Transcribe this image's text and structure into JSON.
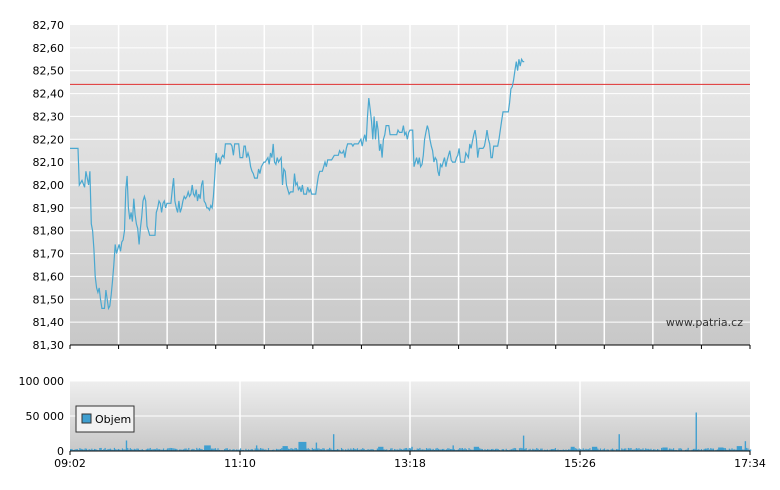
{
  "watermark": "www.patria.cz",
  "legend": {
    "label": "Objem"
  },
  "colors": {
    "price_line": "#4aa8d0",
    "reference_line": "#e03030",
    "volume_bars": "#3f9fd0",
    "plot_bg_top": "#eeeeee",
    "plot_bg_bottom": "#c8c8c8",
    "grid": "#ffffff"
  },
  "chart_data": [
    {
      "type": "line",
      "name": "price",
      "ylim": [
        81.3,
        82.7
      ],
      "y_ticks": [
        "81,30",
        "81,40",
        "81,50",
        "81,60",
        "81,70",
        "81,80",
        "81,90",
        "82,00",
        "82,10",
        "82,20",
        "82,30",
        "82,40",
        "82,50",
        "82,60",
        "82,70"
      ],
      "x_range_minutes": [
        542,
        1054
      ],
      "reference_value": 82.44,
      "points": [
        [
          542,
          82.16
        ],
        [
          548,
          82.16
        ],
        [
          549,
          82.0
        ],
        [
          551,
          82.02
        ],
        [
          553,
          81.99
        ],
        [
          554,
          82.06
        ],
        [
          556,
          82.0
        ],
        [
          557,
          82.06
        ],
        [
          558,
          81.83
        ],
        [
          559,
          81.8
        ],
        [
          560,
          81.72
        ],
        [
          561,
          81.6
        ],
        [
          562,
          81.55
        ],
        [
          563,
          81.53
        ],
        [
          564,
          81.55
        ],
        [
          565,
          81.5
        ],
        [
          566,
          81.46
        ],
        [
          568,
          81.46
        ],
        [
          569,
          81.54
        ],
        [
          570,
          81.5
        ],
        [
          571,
          81.46
        ],
        [
          572,
          81.47
        ],
        [
          573,
          81.52
        ],
        [
          574,
          81.58
        ],
        [
          575,
          81.65
        ],
        [
          576,
          81.74
        ],
        [
          577,
          81.7
        ],
        [
          578,
          81.72
        ],
        [
          579,
          81.74
        ],
        [
          580,
          81.71
        ],
        [
          581,
          81.75
        ],
        [
          582,
          81.76
        ],
        [
          583,
          81.8
        ],
        [
          584,
          81.98
        ],
        [
          585,
          82.04
        ],
        [
          586,
          81.9
        ],
        [
          587,
          81.85
        ],
        [
          588,
          81.88
        ],
        [
          589,
          81.84
        ],
        [
          590,
          81.94
        ],
        [
          591,
          81.87
        ],
        [
          592,
          81.83
        ],
        [
          593,
          81.81
        ],
        [
          594,
          81.74
        ],
        [
          595,
          81.81
        ],
        [
          596,
          81.86
        ],
        [
          597,
          81.93
        ],
        [
          598,
          81.95
        ],
        [
          599,
          81.93
        ],
        [
          600,
          81.82
        ],
        [
          601,
          81.8
        ],
        [
          602,
          81.78
        ],
        [
          604,
          81.78
        ],
        [
          606,
          81.78
        ],
        [
          607,
          81.88
        ],
        [
          608,
          81.9
        ],
        [
          609,
          81.93
        ],
        [
          610,
          81.92
        ],
        [
          611,
          81.88
        ],
        [
          612,
          81.92
        ],
        [
          613,
          81.93
        ],
        [
          614,
          81.9
        ],
        [
          615,
          81.92
        ],
        [
          616,
          81.92
        ],
        [
          618,
          81.92
        ],
        [
          619,
          81.98
        ],
        [
          620,
          82.03
        ],
        [
          621,
          81.93
        ],
        [
          622,
          81.9
        ],
        [
          623,
          81.88
        ],
        [
          624,
          81.93
        ],
        [
          625,
          81.88
        ],
        [
          626,
          81.9
        ],
        [
          627,
          81.93
        ],
        [
          628,
          81.95
        ],
        [
          629,
          81.94
        ],
        [
          630,
          81.95
        ],
        [
          631,
          81.97
        ],
        [
          632,
          81.95
        ],
        [
          633,
          81.96
        ],
        [
          634,
          82.0
        ],
        [
          635,
          81.96
        ],
        [
          636,
          81.95
        ],
        [
          637,
          81.98
        ],
        [
          638,
          81.93
        ],
        [
          639,
          81.96
        ],
        [
          640,
          81.94
        ],
        [
          641,
          82.0
        ],
        [
          642,
          82.02
        ],
        [
          643,
          81.93
        ],
        [
          644,
          81.92
        ],
        [
          645,
          81.9
        ],
        [
          646,
          81.9
        ],
        [
          647,
          81.89
        ],
        [
          648,
          81.91
        ],
        [
          649,
          81.9
        ],
        [
          650,
          81.95
        ],
        [
          651,
          82.04
        ],
        [
          652,
          82.14
        ],
        [
          653,
          82.1
        ],
        [
          654,
          82.12
        ],
        [
          655,
          82.09
        ],
        [
          656,
          82.12
        ],
        [
          657,
          82.13
        ],
        [
          658,
          82.12
        ],
        [
          659,
          82.18
        ],
        [
          660,
          82.18
        ],
        [
          663,
          82.18
        ],
        [
          664,
          82.17
        ],
        [
          665,
          82.13
        ],
        [
          666,
          82.18
        ],
        [
          667,
          82.18
        ],
        [
          669,
          82.18
        ],
        [
          670,
          82.12
        ],
        [
          672,
          82.12
        ],
        [
          673,
          82.17
        ],
        [
          674,
          82.17
        ],
        [
          675,
          82.12
        ],
        [
          676,
          82.14
        ],
        [
          677,
          82.12
        ],
        [
          678,
          82.08
        ],
        [
          679,
          82.06
        ],
        [
          680,
          82.05
        ],
        [
          681,
          82.03
        ],
        [
          683,
          82.03
        ],
        [
          684,
          82.07
        ],
        [
          685,
          82.05
        ],
        [
          686,
          82.08
        ],
        [
          687,
          82.09
        ],
        [
          688,
          82.1
        ],
        [
          689,
          82.1
        ],
        [
          691,
          82.12
        ],
        [
          692,
          82.09
        ],
        [
          693,
          82.14
        ],
        [
          694,
          82.12
        ],
        [
          695,
          82.18
        ],
        [
          696,
          82.1
        ],
        [
          697,
          82.09
        ],
        [
          698,
          82.12
        ],
        [
          699,
          82.1
        ],
        [
          700,
          82.11
        ],
        [
          701,
          82.12
        ],
        [
          702,
          82.0
        ],
        [
          703,
          82.07
        ],
        [
          704,
          82.06
        ],
        [
          705,
          82.0
        ],
        [
          706,
          81.98
        ],
        [
          707,
          81.96
        ],
        [
          708,
          81.97
        ],
        [
          710,
          81.97
        ],
        [
          711,
          82.05
        ],
        [
          712,
          82.0
        ],
        [
          713,
          82.01
        ],
        [
          714,
          81.98
        ],
        [
          715,
          81.99
        ],
        [
          716,
          81.97
        ],
        [
          717,
          82.0
        ],
        [
          718,
          81.96
        ],
        [
          720,
          81.96
        ],
        [
          721,
          81.99
        ],
        [
          722,
          81.97
        ],
        [
          723,
          81.98
        ],
        [
          724,
          81.96
        ],
        [
          727,
          81.96
        ],
        [
          728,
          82.0
        ],
        [
          729,
          82.04
        ],
        [
          730,
          82.06
        ],
        [
          731,
          82.06
        ],
        [
          732,
          82.06
        ],
        [
          733,
          82.08
        ],
        [
          734,
          82.1
        ],
        [
          735,
          82.08
        ],
        [
          736,
          82.11
        ],
        [
          739,
          82.11
        ],
        [
          740,
          82.12
        ],
        [
          741,
          82.13
        ],
        [
          742,
          82.13
        ],
        [
          744,
          82.13
        ],
        [
          745,
          82.15
        ],
        [
          746,
          82.14
        ],
        [
          747,
          82.14
        ],
        [
          748,
          82.15
        ],
        [
          749,
          82.12
        ],
        [
          750,
          82.16
        ],
        [
          751,
          82.18
        ],
        [
          752,
          82.18
        ],
        [
          754,
          82.18
        ],
        [
          755,
          82.17
        ],
        [
          756,
          82.18
        ],
        [
          757,
          82.18
        ],
        [
          759,
          82.18
        ],
        [
          760,
          82.19
        ],
        [
          761,
          82.2
        ],
        [
          762,
          82.17
        ],
        [
          763,
          82.2
        ],
        [
          764,
          82.22
        ],
        [
          765,
          82.19
        ],
        [
          766,
          82.3
        ],
        [
          767,
          82.38
        ],
        [
          768,
          82.33
        ],
        [
          769,
          82.28
        ],
        [
          770,
          82.2
        ],
        [
          771,
          82.3
        ],
        [
          772,
          82.2
        ],
        [
          773,
          82.28
        ],
        [
          774,
          82.24
        ],
        [
          775,
          82.15
        ],
        [
          776,
          82.18
        ],
        [
          777,
          82.12
        ],
        [
          778,
          82.2
        ],
        [
          779,
          82.22
        ],
        [
          780,
          82.26
        ],
        [
          782,
          82.26
        ],
        [
          783,
          82.22
        ],
        [
          784,
          82.22
        ],
        [
          786,
          82.22
        ],
        [
          787,
          82.22
        ],
        [
          788,
          82.22
        ],
        [
          789,
          82.24
        ],
        [
          790,
          82.23
        ],
        [
          792,
          82.23
        ],
        [
          793,
          82.26
        ],
        [
          794,
          82.22
        ],
        [
          795,
          82.23
        ],
        [
          796,
          82.2
        ],
        [
          797,
          82.23
        ],
        [
          798,
          82.24
        ],
        [
          800,
          82.24
        ],
        [
          801,
          82.08
        ],
        [
          802,
          82.1
        ],
        [
          803,
          82.12
        ],
        [
          804,
          82.09
        ],
        [
          805,
          82.12
        ],
        [
          806,
          82.08
        ],
        [
          807,
          82.09
        ],
        [
          808,
          82.13
        ],
        [
          809,
          82.2
        ],
        [
          810,
          82.23
        ],
        [
          811,
          82.26
        ],
        [
          812,
          82.24
        ],
        [
          813,
          82.2
        ],
        [
          814,
          82.17
        ],
        [
          815,
          82.15
        ],
        [
          816,
          82.1
        ],
        [
          817,
          82.12
        ],
        [
          818,
          82.11
        ],
        [
          819,
          82.06
        ],
        [
          820,
          82.04
        ],
        [
          821,
          82.09
        ],
        [
          822,
          82.08
        ],
        [
          823,
          82.1
        ],
        [
          824,
          82.12
        ],
        [
          825,
          82.08
        ],
        [
          826,
          82.11
        ],
        [
          827,
          82.13
        ],
        [
          828,
          82.15
        ],
        [
          829,
          82.11
        ],
        [
          830,
          82.1
        ],
        [
          831,
          82.1
        ],
        [
          832,
          82.1
        ],
        [
          833,
          82.12
        ],
        [
          834,
          82.13
        ],
        [
          835,
          82.16
        ],
        [
          836,
          82.1
        ],
        [
          838,
          82.1
        ],
        [
          839,
          82.1
        ],
        [
          840,
          82.14
        ],
        [
          841,
          82.13
        ],
        [
          842,
          82.12
        ],
        [
          843,
          82.18
        ],
        [
          844,
          82.16
        ],
        [
          845,
          82.19
        ],
        [
          846,
          82.22
        ],
        [
          847,
          82.24
        ],
        [
          848,
          82.2
        ],
        [
          849,
          82.12
        ],
        [
          850,
          82.16
        ],
        [
          851,
          82.16
        ],
        [
          853,
          82.16
        ],
        [
          854,
          82.17
        ],
        [
          855,
          82.2
        ],
        [
          856,
          82.24
        ],
        [
          857,
          82.2
        ],
        [
          858,
          82.18
        ],
        [
          859,
          82.12
        ],
        [
          860,
          82.12
        ],
        [
          861,
          82.17
        ],
        [
          862,
          82.17
        ],
        [
          864,
          82.17
        ],
        [
          865,
          82.2
        ],
        [
          866,
          82.24
        ],
        [
          867,
          82.28
        ],
        [
          868,
          82.32
        ],
        [
          869,
          82.32
        ],
        [
          872,
          82.32
        ],
        [
          873,
          82.36
        ],
        [
          874,
          82.42
        ],
        [
          875,
          82.43
        ],
        [
          876,
          82.46
        ],
        [
          877,
          82.5
        ],
        [
          878,
          82.54
        ],
        [
          879,
          82.5
        ],
        [
          880,
          82.55
        ],
        [
          881,
          82.52
        ],
        [
          882,
          82.55
        ],
        [
          883,
          82.54
        ],
        [
          884,
          82.54
        ]
      ]
    },
    {
      "type": "bar",
      "name": "Objem",
      "ylim": [
        0,
        100000
      ],
      "y_ticks": [
        "0",
        "50 000",
        "100 000"
      ],
      "x_ticks": [
        "09:02",
        "11:10",
        "13:18",
        "15:26",
        "17:34"
      ],
      "spikes": [
        [
          584,
          15000
        ],
        [
          682,
          8000
        ],
        [
          727,
          12000
        ],
        [
          740,
          24000
        ],
        [
          799,
          6000
        ],
        [
          830,
          8000
        ],
        [
          883,
          22000
        ],
        [
          955,
          24000
        ],
        [
          1013,
          55000
        ],
        [
          1050,
          14000
        ]
      ],
      "blocks": [
        [
          643,
          648,
          8000
        ],
        [
          702,
          706,
          7000
        ],
        [
          714,
          720,
          13000
        ],
        [
          774,
          778,
          6000
        ],
        [
          846,
          850,
          6000
        ],
        [
          919,
          922,
          6000
        ],
        [
          935,
          939,
          6000
        ],
        [
          988,
          992,
          5000
        ],
        [
          1030,
          1034,
          5000
        ],
        [
          1044,
          1048,
          7000
        ]
      ],
      "baseline_level": 2500
    }
  ]
}
